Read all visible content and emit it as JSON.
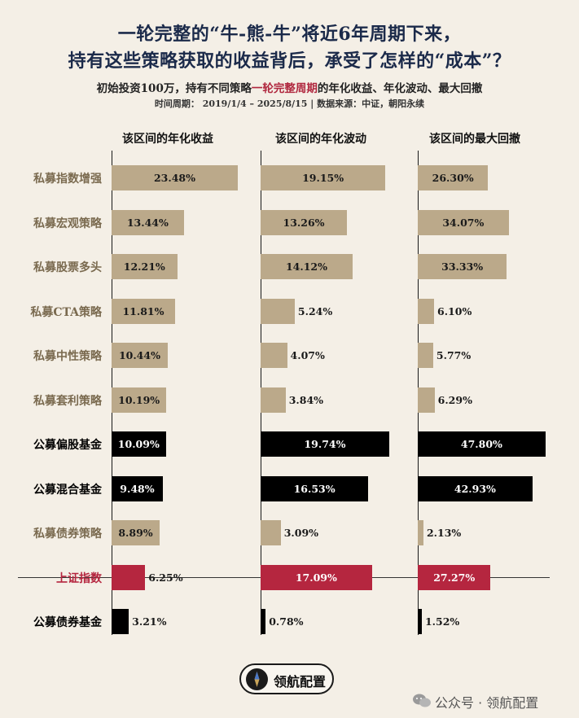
{
  "title_line1": "一轮完整的“牛-熊-牛”将近6年周期下来，",
  "title_line2": "持有这些策略获取的收益背后，承受了怎样的“成本”？",
  "subtitle_pre": "初始投资100万，持有不同策略",
  "subtitle_highlight": "一轮完整周期",
  "subtitle_post": "的年化收益、年化波动、最大回撤",
  "meta": "时间周期：  2019/1/4 – 2025/8/15 | 数据来源：中证，朝阳永续",
  "colors": {
    "tan": "#bba98a",
    "black": "#000000",
    "red": "#b5263f",
    "tan_label": "#7a6a4f"
  },
  "chart_data": {
    "type": "bar",
    "orientation": "horizontal",
    "categories": [
      "私募指数增强",
      "私募宏观策略",
      "私募股票多头",
      "私募CTA策略",
      "私募中性策略",
      "私募套利策略",
      "公募偏股基金",
      "公募混合基金",
      "私募债券策略",
      "上证指数",
      "公募债券基金"
    ],
    "category_groups": [
      "private",
      "private",
      "private",
      "private",
      "private",
      "private",
      "public",
      "public",
      "private",
      "index",
      "public"
    ],
    "panels": [
      {
        "title": "该区间的年化收益",
        "values": [
          23.48,
          13.44,
          12.21,
          11.81,
          10.44,
          10.19,
          10.09,
          9.48,
          8.89,
          6.25,
          3.21
        ],
        "labels": [
          "23.48%",
          "13.44%",
          "12.21%",
          "11.81%",
          "10.44%",
          "10.19%",
          "10.09%",
          "9.48%",
          "8.89%",
          "6.25%",
          "3.21%"
        ]
      },
      {
        "title": "该区间的年化波动",
        "values": [
          19.15,
          13.26,
          14.12,
          5.24,
          4.07,
          3.84,
          19.74,
          16.53,
          3.09,
          17.09,
          0.78
        ],
        "labels": [
          "19.15%",
          "13.26%",
          "14.12%",
          "5.24%",
          "4.07%",
          "3.84%",
          "19.74%",
          "16.53%",
          "3.09%",
          "17.09%",
          "0.78%"
        ]
      },
      {
        "title": "该区间的最大回撤",
        "values": [
          26.3,
          34.07,
          33.33,
          6.1,
          5.77,
          6.29,
          47.8,
          42.93,
          2.13,
          27.27,
          1.52
        ],
        "labels": [
          "26.30%",
          "34.07%",
          "33.33%",
          "6.10%",
          "5.77%",
          "6.29%",
          "47.80%",
          "42.93%",
          "2.13%",
          "27.27%",
          "1.52%"
        ]
      }
    ]
  },
  "brand_name": "领航配置",
  "wechat_text": "公众号 · 领航配置"
}
